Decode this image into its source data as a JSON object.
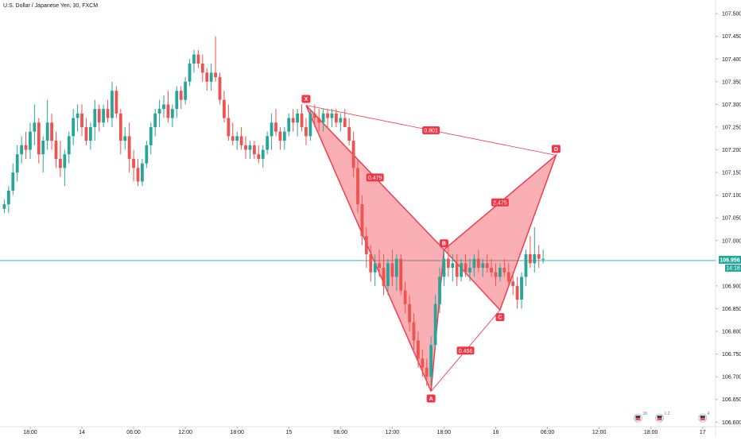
{
  "header": {
    "title": "U.S. Dollar / Japanese Yen, 30, FXCM"
  },
  "price_label": {
    "price": "106.956",
    "countdown": "14:18",
    "color": "#26a69a"
  },
  "icons": [
    "flag-us-icon",
    "flag-us-jp-icon",
    "flag-jp-icon"
  ],
  "event_badges": [
    "38",
    "1 2",
    "4"
  ],
  "colors": {
    "up": "#26a69a",
    "down": "#ef5350",
    "pattern": "#f23645"
  },
  "chart_data": {
    "type": "candlestick",
    "yaxis": {
      "ticks": [
        "107.500",
        "107.450",
        "107.400",
        "107.350",
        "107.300",
        "107.250",
        "107.200",
        "107.150",
        "107.100",
        "107.050",
        "107.000",
        "106.956",
        "106.900",
        "106.850",
        "106.800",
        "106.750",
        "106.700",
        "106.650",
        "106.600"
      ],
      "range": [
        106.59,
        107.53
      ]
    },
    "xaxis": {
      "ticks": [
        "18:00",
        "14",
        "06:00",
        "12:00",
        "18:00",
        "15",
        "06:00",
        "12:00",
        "18:00",
        "16",
        "06:00",
        "12:00",
        "18:00",
        "17"
      ],
      "tick_bar_index": [
        6,
        18,
        30,
        42,
        54,
        66,
        78,
        90,
        102,
        114,
        126,
        138,
        150,
        162
      ],
      "range_bars": [
        -1,
        165
      ]
    },
    "current_price": 106.956,
    "candles": [
      [
        107.07,
        107.09,
        107.06,
        107.08
      ],
      [
        107.08,
        107.12,
        107.06,
        107.11
      ],
      [
        107.11,
        107.17,
        107.1,
        107.15
      ],
      [
        107.15,
        107.21,
        107.13,
        107.19
      ],
      [
        107.19,
        107.23,
        107.17,
        107.21
      ],
      [
        107.21,
        107.24,
        107.18,
        107.2
      ],
      [
        107.2,
        107.26,
        107.18,
        107.24
      ],
      [
        107.24,
        107.3,
        107.21,
        107.26
      ],
      [
        107.26,
        107.27,
        107.17,
        107.19
      ],
      [
        107.19,
        107.23,
        107.15,
        107.22
      ],
      [
        107.22,
        107.31,
        107.2,
        107.26
      ],
      [
        107.26,
        107.28,
        107.2,
        107.22
      ],
      [
        107.22,
        107.24,
        107.16,
        107.18
      ],
      [
        107.18,
        107.22,
        107.14,
        107.16
      ],
      [
        107.16,
        107.2,
        107.12,
        107.19
      ],
      [
        107.19,
        107.24,
        107.17,
        107.23
      ],
      [
        107.23,
        107.29,
        107.21,
        107.27
      ],
      [
        107.27,
        107.3,
        107.24,
        107.28
      ],
      [
        107.28,
        107.3,
        107.23,
        107.25
      ],
      [
        107.25,
        107.27,
        107.21,
        107.22
      ],
      [
        107.22,
        107.26,
        107.2,
        107.25
      ],
      [
        107.25,
        107.31,
        107.22,
        107.29
      ],
      [
        107.29,
        107.3,
        107.24,
        107.26
      ],
      [
        107.26,
        107.3,
        107.25,
        107.29
      ],
      [
        107.29,
        107.31,
        107.26,
        107.27
      ],
      [
        107.27,
        107.35,
        107.25,
        107.33
      ],
      [
        107.33,
        107.34,
        107.27,
        107.28
      ],
      [
        107.28,
        107.29,
        107.19,
        107.22
      ],
      [
        107.22,
        107.25,
        107.2,
        107.23
      ],
      [
        107.23,
        107.26,
        107.15,
        107.18
      ],
      [
        107.18,
        107.2,
        107.13,
        107.16
      ],
      [
        107.16,
        107.18,
        107.12,
        107.13
      ],
      [
        107.13,
        107.18,
        107.12,
        107.17
      ],
      [
        107.17,
        107.22,
        107.16,
        107.21
      ],
      [
        107.21,
        107.26,
        107.19,
        107.25
      ],
      [
        107.25,
        107.29,
        107.23,
        107.28
      ],
      [
        107.28,
        107.31,
        107.25,
        107.29
      ],
      [
        107.29,
        107.32,
        107.27,
        107.3
      ],
      [
        107.3,
        107.33,
        107.26,
        107.27
      ],
      [
        107.27,
        107.3,
        107.25,
        107.29
      ],
      [
        107.29,
        107.34,
        107.27,
        107.33
      ],
      [
        107.33,
        107.34,
        107.29,
        107.31
      ],
      [
        107.31,
        107.36,
        107.3,
        107.35
      ],
      [
        107.35,
        107.4,
        107.34,
        107.39
      ],
      [
        107.39,
        107.42,
        107.37,
        107.41
      ],
      [
        107.41,
        107.42,
        107.38,
        107.39
      ],
      [
        107.39,
        107.41,
        107.35,
        107.37
      ],
      [
        107.37,
        107.38,
        107.33,
        107.35
      ],
      [
        107.35,
        107.39,
        107.33,
        107.37
      ],
      [
        107.37,
        107.45,
        107.35,
        107.36
      ],
      [
        107.36,
        107.37,
        107.3,
        107.31
      ],
      [
        107.31,
        107.33,
        107.26,
        107.27
      ],
      [
        107.27,
        107.3,
        107.22,
        107.23
      ],
      [
        107.23,
        107.26,
        107.21,
        107.22
      ],
      [
        107.22,
        107.24,
        107.2,
        107.23
      ],
      [
        107.23,
        107.25,
        107.2,
        107.21
      ],
      [
        107.21,
        107.23,
        107.18,
        107.2
      ],
      [
        107.2,
        107.22,
        107.18,
        107.21
      ],
      [
        107.21,
        107.22,
        107.18,
        107.19
      ],
      [
        107.19,
        107.21,
        107.17,
        107.18
      ],
      [
        107.18,
        107.21,
        107.16,
        107.2
      ],
      [
        107.2,
        107.24,
        107.19,
        107.23
      ],
      [
        107.23,
        107.28,
        107.2,
        107.26
      ],
      [
        107.26,
        107.29,
        107.23,
        107.24
      ],
      [
        107.24,
        107.25,
        107.2,
        107.22
      ],
      [
        107.22,
        107.25,
        107.2,
        107.24
      ],
      [
        107.24,
        107.28,
        107.23,
        107.27
      ],
      [
        107.27,
        107.29,
        107.24,
        107.26
      ],
      [
        107.26,
        107.29,
        107.23,
        107.28
      ],
      [
        107.28,
        107.3,
        107.24,
        107.25
      ],
      [
        107.25,
        107.27,
        107.21,
        107.23
      ],
      [
        107.23,
        107.29,
        107.22,
        107.28
      ],
      [
        107.28,
        107.3,
        107.25,
        107.27
      ],
      [
        107.27,
        107.29,
        107.24,
        107.26
      ],
      [
        107.26,
        107.29,
        107.24,
        107.28
      ],
      [
        107.28,
        107.29,
        107.25,
        107.27
      ],
      [
        107.27,
        107.29,
        107.25,
        107.28
      ],
      [
        107.28,
        107.29,
        107.25,
        107.26
      ],
      [
        107.26,
        107.28,
        107.24,
        107.27
      ],
      [
        107.27,
        107.29,
        107.25,
        107.25
      ],
      [
        107.25,
        107.27,
        107.21,
        107.22
      ],
      [
        107.22,
        107.24,
        107.14,
        107.16
      ],
      [
        107.16,
        107.18,
        107.06,
        107.08
      ],
      [
        107.08,
        107.1,
        106.99,
        107.01
      ],
      [
        107.01,
        107.03,
        106.94,
        106.97
      ],
      [
        106.97,
        106.99,
        106.91,
        106.93
      ],
      [
        106.93,
        106.97,
        106.9,
        106.95
      ],
      [
        106.95,
        106.98,
        106.92,
        106.94
      ],
      [
        106.94,
        106.97,
        106.88,
        106.9
      ],
      [
        106.9,
        106.96,
        106.88,
        106.95
      ],
      [
        106.95,
        106.98,
        106.9,
        106.92
      ],
      [
        106.92,
        106.97,
        106.89,
        106.96
      ],
      [
        106.96,
        106.97,
        106.88,
        106.89
      ],
      [
        106.89,
        106.91,
        106.84,
        106.86
      ],
      [
        106.86,
        106.88,
        106.8,
        106.82
      ],
      [
        106.82,
        106.84,
        106.76,
        106.78
      ],
      [
        106.78,
        106.8,
        106.72,
        106.74
      ],
      [
        106.74,
        106.76,
        106.7,
        106.72
      ],
      [
        106.72,
        106.74,
        106.68,
        106.7
      ],
      [
        106.7,
        106.79,
        106.68,
        106.77
      ],
      [
        106.77,
        106.88,
        106.76,
        106.86
      ],
      [
        106.86,
        106.94,
        106.84,
        106.92
      ],
      [
        106.92,
        106.98,
        106.9,
        106.96
      ],
      [
        106.96,
        106.99,
        106.92,
        106.94
      ],
      [
        106.94,
        106.97,
        106.91,
        106.95
      ],
      [
        106.95,
        106.97,
        106.9,
        106.92
      ],
      [
        106.92,
        106.96,
        106.91,
        106.95
      ],
      [
        106.95,
        106.97,
        106.92,
        106.93
      ],
      [
        106.93,
        106.96,
        106.91,
        106.94
      ],
      [
        106.94,
        106.97,
        106.92,
        106.96
      ],
      [
        106.96,
        106.98,
        106.93,
        106.94
      ],
      [
        106.94,
        106.96,
        106.92,
        106.95
      ],
      [
        106.95,
        106.97,
        106.93,
        106.94
      ],
      [
        106.94,
        106.96,
        106.92,
        106.93
      ],
      [
        106.93,
        106.95,
        106.9,
        106.92
      ],
      [
        106.92,
        106.95,
        106.91,
        106.94
      ],
      [
        106.94,
        106.96,
        106.92,
        106.93
      ],
      [
        106.93,
        106.95,
        106.9,
        106.91
      ],
      [
        106.91,
        106.93,
        106.88,
        106.9
      ],
      [
        106.9,
        106.92,
        106.85,
        106.87
      ],
      [
        106.87,
        106.93,
        106.85,
        106.92
      ],
      [
        106.92,
        106.98,
        106.9,
        106.97
      ],
      [
        106.97,
        107.01,
        106.94,
        106.95
      ],
      [
        106.95,
        107.03,
        106.93,
        106.97
      ],
      [
        106.97,
        106.99,
        106.94,
        106.96
      ],
      [
        106.96,
        106.98,
        106.95,
        106.96
      ]
    ],
    "pattern": {
      "points": [
        {
          "label": "X",
          "bar": 70,
          "price": 107.298
        },
        {
          "label": "A",
          "bar": 99,
          "price": 106.668
        },
        {
          "label": "B",
          "bar": 102,
          "price": 106.98
        },
        {
          "label": "C",
          "bar": 115,
          "price": 106.847
        },
        {
          "label": "D",
          "bar": 128,
          "price": 107.188
        }
      ],
      "ratios": [
        {
          "label": "0.479",
          "from": "X",
          "to": "B"
        },
        {
          "label": "0.801",
          "from": "X",
          "to": "D"
        },
        {
          "label": "2.475",
          "from": "B",
          "to": "D"
        },
        {
          "label": "0.456",
          "from": "A",
          "to": "C"
        }
      ]
    }
  }
}
